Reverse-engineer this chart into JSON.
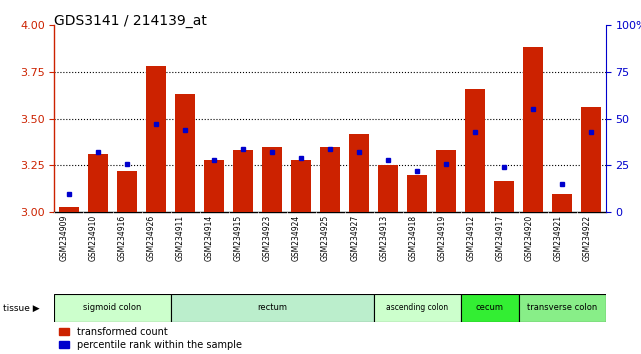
{
  "title": "GDS3141 / 214139_at",
  "samples": [
    "GSM234909",
    "GSM234910",
    "GSM234916",
    "GSM234926",
    "GSM234911",
    "GSM234914",
    "GSM234915",
    "GSM234923",
    "GSM234924",
    "GSM234925",
    "GSM234927",
    "GSM234913",
    "GSM234918",
    "GSM234919",
    "GSM234912",
    "GSM234917",
    "GSM234920",
    "GSM234921",
    "GSM234922"
  ],
  "transformed_count": [
    3.03,
    3.31,
    3.22,
    3.78,
    3.63,
    3.28,
    3.33,
    3.35,
    3.28,
    3.35,
    3.42,
    3.25,
    3.2,
    3.33,
    3.66,
    3.17,
    3.88,
    3.1,
    3.56
  ],
  "percentile_rank": [
    10,
    32,
    26,
    47,
    44,
    28,
    34,
    32,
    29,
    34,
    32,
    28,
    22,
    26,
    43,
    24,
    55,
    15,
    43
  ],
  "ylim_left": [
    3.0,
    4.0
  ],
  "ylim_right": [
    0,
    100
  ],
  "yticks_left": [
    3.0,
    3.25,
    3.5,
    3.75,
    4.0
  ],
  "yticks_right": [
    0,
    25,
    50,
    75,
    100
  ],
  "gridlines": [
    3.25,
    3.5,
    3.75
  ],
  "tissue_groups": [
    {
      "label": "sigmoid colon",
      "start": 0,
      "end": 3,
      "color": "#ccffcc"
    },
    {
      "label": "rectum",
      "start": 4,
      "end": 10,
      "color": "#bbeecc"
    },
    {
      "label": "ascending colon",
      "start": 11,
      "end": 13,
      "color": "#ccffcc"
    },
    {
      "label": "cecum",
      "start": 14,
      "end": 15,
      "color": "#33ee33"
    },
    {
      "label": "transverse colon",
      "start": 16,
      "end": 18,
      "color": "#88ee88"
    }
  ],
  "bar_color": "#cc2200",
  "dot_color": "#0000cc",
  "plot_bg": "#ffffff",
  "left_axis_color": "#cc2200",
  "right_axis_color": "#0000cc",
  "sample_bg": "#cccccc"
}
